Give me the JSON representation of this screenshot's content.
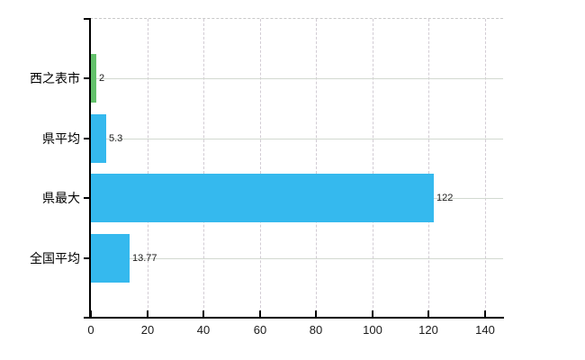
{
  "chart_data": {
    "type": "bar",
    "orientation": "horizontal",
    "title": "",
    "xlabel": "",
    "ylabel": "",
    "categories": [
      "西之表市",
      "県平均",
      "県最大",
      "全国平均"
    ],
    "values": [
      2,
      5.3,
      122,
      13.77
    ],
    "value_labels": [
      "2",
      "5.3",
      "122",
      "13.77"
    ],
    "bar_colors": [
      "#63c16b",
      "#35b9ee",
      "#35b9ee",
      "#35b9ee"
    ],
    "x_ticks": [
      0,
      20,
      40,
      60,
      80,
      100,
      120,
      140
    ],
    "xlim": [
      0,
      146.8
    ],
    "grid": true,
    "legend": false
  },
  "colors": {
    "bar_blue": "#35b9ee",
    "bar_green": "#63c16b",
    "axis": "#000000",
    "vertical_grid": "#d2ccd4",
    "horizontal_grid": "#d2d9d0",
    "plot_top_border": "#c9c9c9",
    "tick_label": "#1a1a1a",
    "background": "#ffffff"
  }
}
